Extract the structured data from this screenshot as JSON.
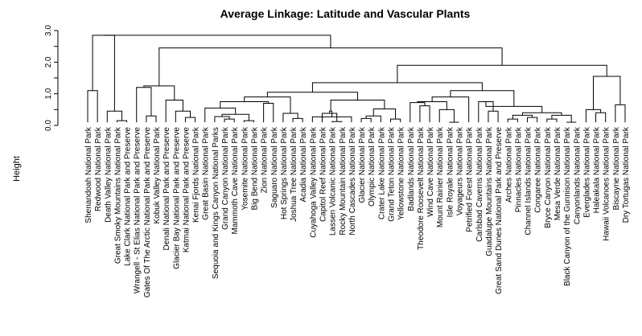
{
  "chart_data": {
    "type": "dendrogram",
    "title": "Average Linkage: Latitude and Vascular Plants",
    "ylabel": "Height",
    "xlabel": "",
    "ylim": [
      0,
      3.0
    ],
    "y_ticks": [
      "0.0",
      "1.0",
      "2.0",
      "3.0"
    ],
    "grid": false,
    "leaves": [
      "Shenandoah National Park",
      "Redwood National Park",
      "Death Valley National Park",
      "Great Smoky Mountains National Park",
      "Lake Clark National Park and Preserve",
      "Wrangell - St Elias National Park and Preserve",
      "Gates Of The Arctic National Park and Preserve",
      "Kobuk Valley National Park",
      "Denali National Park and Preserve",
      "Glacier Bay National Park and Preserve",
      "Katmai National Park and Preserve",
      "Kenai Fjords National Park",
      "Great Basin National Park",
      "Sequoia and Kings Canyon National Parks",
      "Grand Canyon National Park",
      "Mammoth Cave National Park",
      "Yosemite National Park",
      "Big Bend National Park",
      "Zion National Park",
      "Saguaro National Park",
      "Hot Springs National Park",
      "Joshua Tree National Park",
      "Acadia National Park",
      "Cuyahoga Valley National Park",
      "Capitol Reef National Park",
      "Lassen Volcanic National Park",
      "Rocky Mountain National Park",
      "North Cascades National Park",
      "Glacier National Park",
      "Olympic National Park",
      "Crater Lake National Park",
      "Grand Teton National Park",
      "Yellowstone National Park",
      "Badlands National Park",
      "Theodore Roosevelt National Park",
      "Wind Cave National Park",
      "Mount Rainier National Park",
      "Isle Royale National Park",
      "Voyageurs National Park",
      "Petrified Forest National Park",
      "Carlsbad Caverns National Park",
      "Guadalupe Mountains National Park",
      "Great Sand Dunes National Park and Preserve",
      "Arches National Park",
      "Pinnacles National Park",
      "Channel Islands National Park",
      "Congaree National Park",
      "Bryce Canyon National Park",
      "Mesa Verde National Park",
      "Black Canyon of the Gunnison National Park",
      "Canyonlands National Park",
      "Everglades National Park",
      "Haleakala National Park",
      "Hawaii Volcanoes National Park",
      "Biscayne National Park",
      "Dry Tortugas National Park"
    ],
    "merges": [
      [
        -1,
        -2,
        1.1
      ],
      [
        -4,
        -5,
        0.15
      ],
      [
        -3,
        2,
        0.45
      ],
      [
        1,
        3,
        2.85
      ],
      [
        -7,
        -8,
        0.3
      ],
      [
        -6,
        5,
        1.2
      ],
      [
        -11,
        -12,
        0.25
      ],
      [
        -10,
        7,
        0.45
      ],
      [
        -9,
        8,
        0.8
      ],
      [
        6,
        9,
        1.25
      ],
      [
        -15,
        -16,
        0.2
      ],
      [
        -14,
        11,
        0.28
      ],
      [
        -17,
        -18,
        0.15
      ],
      [
        12,
        13,
        0.35
      ],
      [
        -13,
        14,
        0.55
      ],
      [
        -19,
        -20,
        0.7
      ],
      [
        15,
        16,
        0.75
      ],
      [
        -22,
        -23,
        0.22
      ],
      [
        -21,
        18,
        0.38
      ],
      [
        17,
        19,
        0.9
      ],
      [
        -26,
        -27,
        0.12
      ],
      [
        -25,
        21,
        0.38
      ],
      [
        -24,
        -28,
        0.27
      ],
      [
        23,
        22,
        0.45
      ],
      [
        -29,
        -30,
        0.22
      ],
      [
        -31,
        25,
        0.3
      ],
      [
        -32,
        -33,
        0.2
      ],
      [
        26,
        27,
        0.52
      ],
      [
        24,
        28,
        0.8
      ],
      [
        20,
        29,
        1.05
      ],
      [
        -35,
        -36,
        0.62
      ],
      [
        -34,
        31,
        0.72
      ],
      [
        -38,
        -39,
        0.1
      ],
      [
        -37,
        33,
        0.5
      ],
      [
        32,
        34,
        0.75
      ],
      [
        -40,
        35,
        0.9
      ],
      [
        -42,
        -43,
        0.45
      ],
      [
        -41,
        37,
        0.75
      ],
      [
        -44,
        -45,
        0.2
      ],
      [
        -46,
        -47,
        0.25
      ],
      [
        39,
        40,
        0.32
      ],
      [
        -48,
        -49,
        0.2
      ],
      [
        -50,
        -51,
        0.1
      ],
      [
        42,
        43,
        0.32
      ],
      [
        41,
        44,
        0.4
      ],
      [
        38,
        45,
        0.6
      ],
      [
        36,
        46,
        1.1
      ],
      [
        30,
        47,
        1.35
      ],
      [
        -53,
        -54,
        0.4
      ],
      [
        -52,
        49,
        0.5
      ],
      [
        -55,
        -56,
        0.65
      ],
      [
        50,
        51,
        1.55
      ],
      [
        48,
        52,
        1.9
      ],
      [
        10,
        53,
        2.45
      ],
      [
        4,
        54,
        2.85
      ]
    ]
  }
}
